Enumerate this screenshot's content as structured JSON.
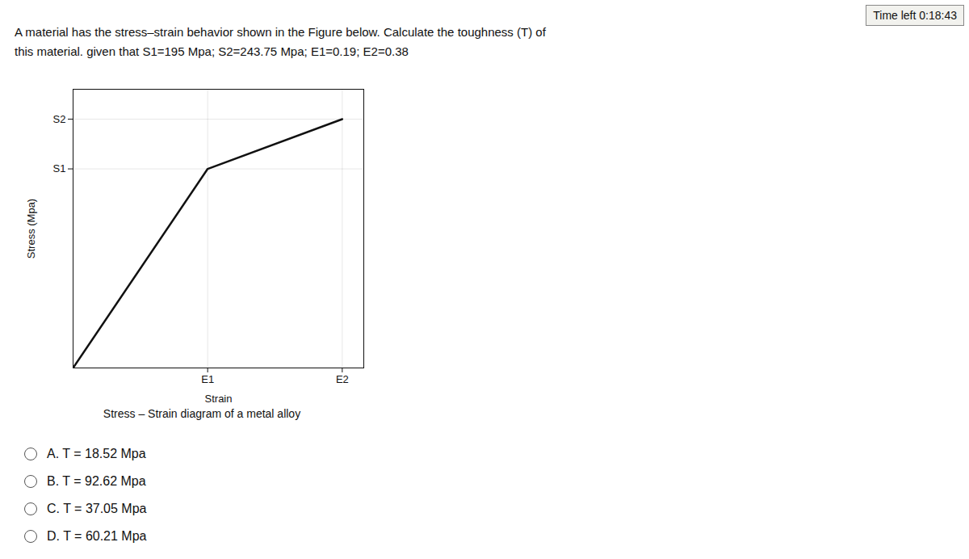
{
  "chart_data": {
    "type": "line",
    "title": "Stress – Strain diagram of a metal alloy",
    "xlabel": "Strain",
    "ylabel": "Stress (Mpa)",
    "x": [
      0,
      0.19,
      0.38
    ],
    "values": [
      0,
      195,
      243.75
    ],
    "color": "#111111",
    "xlim": [
      0,
      0.4104
    ],
    "ylim": [
      0,
      273
    ],
    "xticks": [
      {
        "value": 0.19,
        "label": "E1"
      },
      {
        "value": 0.38,
        "label": "E2"
      }
    ],
    "yticks": [
      {
        "value": 195,
        "label": "S1"
      },
      {
        "value": 243.75,
        "label": "S2"
      }
    ],
    "grid": true,
    "annotations": [
      "Time left 0:18:43",
      "A material has the stress–strain behavior shown in the Figure below. Calculate the toughness (T) of",
      "this material. given that S1=195 Mpa; S2=243.75 Mpa; E1=0.19; E2=0.38",
      "A. T = 18.52 Mpa",
      "B. T = 92.62 Mpa",
      "C. T = 37.05 Mpa",
      "D. T = 60.21 Mpa"
    ]
  }
}
